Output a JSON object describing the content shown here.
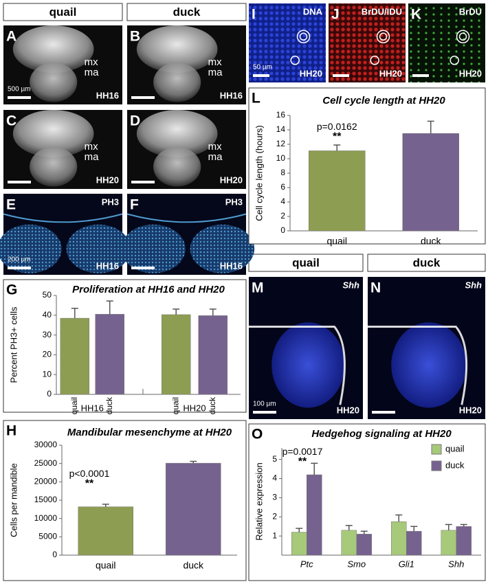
{
  "headers": [
    "quail",
    "duck",
    "quail",
    "duck"
  ],
  "panels": [
    {
      "letter": "A",
      "labels": [
        "mx",
        "ma"
      ],
      "scale": "500 µm",
      "stage": "HH16"
    },
    {
      "letter": "B",
      "labels": [
        "mx",
        "ma"
      ],
      "stage": "HH16"
    },
    {
      "letter": "C",
      "labels": [
        "mx",
        "ma"
      ],
      "stage": "HH20"
    },
    {
      "letter": "D",
      "labels": [
        "mx",
        "ma"
      ],
      "stage": "HH20"
    },
    {
      "letter": "E",
      "marker": "PH3",
      "scale": "200 µm",
      "stage": "HH16"
    },
    {
      "letter": "F",
      "marker": "PH3",
      "stage": "HH16"
    },
    {
      "letter": "I",
      "marker": "DNA",
      "scale": "50 µm",
      "stage": "HH20"
    },
    {
      "letter": "J",
      "marker": "BrDU/IDU",
      "stage": "HH20"
    },
    {
      "letter": "K",
      "marker": "BrDU",
      "stage": "HH20"
    },
    {
      "letter": "M",
      "marker": "Shh",
      "scale": "100 µm",
      "stage": "HH20"
    },
    {
      "letter": "N",
      "marker": "Shh",
      "stage": "HH20"
    }
  ],
  "chart_data": [
    {
      "type": "bar",
      "panel": "G",
      "title": "Proliferation at HH16 and HH20",
      "y_label": "Percent PH3+ cells",
      "categories": [
        "quail",
        "duck",
        "quail",
        "duck"
      ],
      "groups": [
        "HH16",
        "HH20"
      ],
      "values": [
        38.5,
        40.5,
        40.3,
        39.8
      ],
      "errors": [
        5,
        6.7,
        2.8,
        3.3
      ],
      "colors": [
        "#8d9e52",
        "#76628f",
        "#8d9e52",
        "#76628f"
      ],
      "ylim": [
        0,
        50
      ],
      "yticks": [
        0,
        10,
        20,
        30,
        40,
        50
      ]
    },
    {
      "type": "bar",
      "panel": "H",
      "title": "Mandibular mesenchyme at HH20",
      "y_label": "Cells per mandible",
      "categories": [
        "quail",
        "duck"
      ],
      "values": [
        13200,
        25100
      ],
      "errors": [
        700,
        500
      ],
      "colors": [
        "#8d9e52",
        "#76628f"
      ],
      "annotations": [
        "p<0.0001",
        "**"
      ],
      "ylim": [
        0,
        30000
      ],
      "yticks": [
        0,
        5000,
        10000,
        15000,
        20000,
        25000,
        30000
      ]
    },
    {
      "type": "bar",
      "panel": "L",
      "title": "Cell cycle length at HH20",
      "y_label": "Cell cycle length (hours)",
      "categories": [
        "quail",
        "duck"
      ],
      "values": [
        11.1,
        13.5
      ],
      "errors": [
        0.8,
        1.7
      ],
      "colors": [
        "#8d9e52",
        "#76628f"
      ],
      "annotations": [
        "p=0.0162",
        "**"
      ],
      "ylim": [
        0,
        16
      ],
      "yticks": [
        0,
        2,
        4,
        6,
        8,
        10,
        12,
        14,
        16
      ]
    },
    {
      "type": "grouped-bar",
      "panel": "O",
      "title": "Hedgehog signaling at HH20",
      "y_label": "Relative expression",
      "categories": [
        "Ptc",
        "Smo",
        "Gli1",
        "Shh"
      ],
      "series": [
        {
          "name": "quail",
          "color": "#a6c97a",
          "values": [
            1.2,
            1.3,
            1.75,
            1.3
          ],
          "errors": [
            0.2,
            0.25,
            0.35,
            0.3
          ]
        },
        {
          "name": "duck",
          "color": "#76628f",
          "values": [
            4.2,
            1.1,
            1.25,
            1.5
          ],
          "errors": [
            0.6,
            0.15,
            0.25,
            0.1
          ]
        }
      ],
      "annotations": [
        "p=0.0017",
        "**"
      ],
      "ylim": [
        0,
        5.6
      ],
      "yticks": [
        1,
        2,
        3,
        4,
        5
      ]
    }
  ]
}
